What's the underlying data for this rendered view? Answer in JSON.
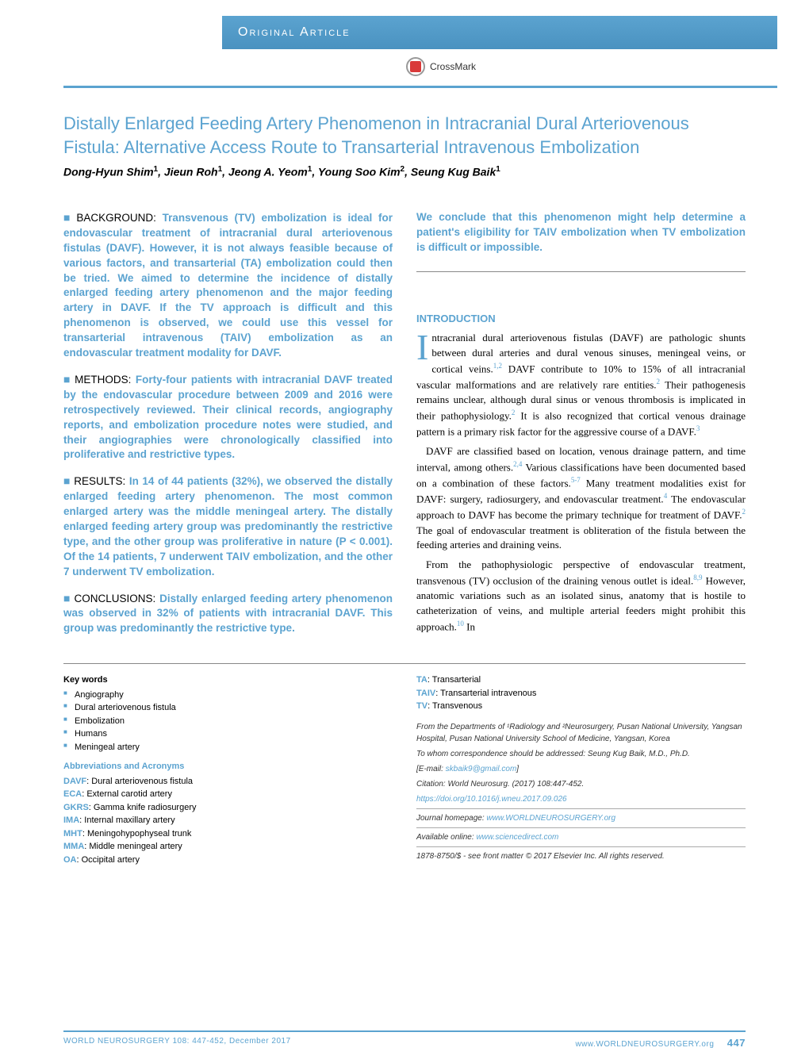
{
  "header": {
    "section_label": "Original Article",
    "crossmark": "CrossMark"
  },
  "title": "Distally Enlarged Feeding Artery Phenomenon in Intracranial Dural Arteriovenous Fistula: Alternative Access Route to Transarterial Intravenous Embolization",
  "authors_html": "Dong-Hyun Shim<sup>1</sup>, Jieun Roh<sup>1</sup>, Jeong A. Yeom<sup>1</sup>, Young Soo Kim<sup>2</sup>, Seung Kug Baik<sup>1</sup>",
  "abstract": {
    "background": {
      "label": "BACKGROUND:",
      "text": "Transvenous (TV) embolization is ideal for endovascular treatment of intracranial dural arteriovenous fistulas (DAVF). However, it is not always feasible because of various factors, and transarterial (TA) embolization could then be tried. We aimed to determine the incidence of distally enlarged feeding artery phenomenon and the major feeding artery in DAVF. If the TV approach is difficult and this phenomenon is observed, we could use this vessel for transarterial intravenous (TAIV) embolization as an endovascular treatment modality for DAVF."
    },
    "methods": {
      "label": "METHODS:",
      "text": "Forty-four patients with intracranial DAVF treated by the endovascular procedure between 2009 and 2016 were retrospectively reviewed. Their clinical records, angiography reports, and embolization procedure notes were studied, and their angiographies were chronologically classified into proliferative and restrictive types."
    },
    "results": {
      "label": "RESULTS:",
      "text": "In 14 of 44 patients (32%), we observed the distally enlarged feeding artery phenomenon. The most common enlarged artery was the middle meningeal artery. The distally enlarged feeding artery group was predominantly the restrictive type, and the other group was proliferative in nature (P < 0.001). Of the 14 patients, 7 underwent TAIV embolization, and the other 7 underwent TV embolization."
    },
    "conclusions": {
      "label": "CONCLUSIONS:",
      "text": "Distally enlarged feeding artery phenomenon was observed in 32% of patients with intracranial DAVF. This group was predominantly the restrictive type.",
      "cont": "We conclude that this phenomenon might help determine a patient's eligibility for TAIV embolization when TV embolization is difficult or impossible."
    }
  },
  "intro": {
    "heading": "INTRODUCTION",
    "p1_lead": "I",
    "p1": "ntracranial dural arteriovenous fistulas (DAVF) are pathologic shunts between dural arteries and dural venous sinuses, meningeal veins, or cortical veins.",
    "p1_refs1": "1,2",
    "p1b": " DAVF contribute to 10% to 15% of all intracranial vascular malformations and are relatively rare entities.",
    "p1_refs2": "2",
    "p1c": " Their pathogenesis remains unclear, although dural sinus or venous thrombosis is implicated in their pathophysiology.",
    "p1_refs3": "2",
    "p1d": " It is also recognized that cortical venous drainage pattern is a primary risk factor for the aggressive course of a DAVF.",
    "p1_refs4": "3",
    "p2": "DAVF are classified based on location, venous drainage pattern, and time interval, among others.",
    "p2_refs1": "2,4",
    "p2b": " Various classifications have been documented based on a combination of these factors.",
    "p2_refs2": "5-7",
    "p2c": " Many treatment modalities exist for DAVF: surgery, radiosurgery, and endovascular treatment.",
    "p2_refs3": "4",
    "p2d": " The endovascular approach to DAVF has become the primary technique for treatment of DAVF.",
    "p2_refs4": "2",
    "p2e": " The goal of endovascular treatment is obliteration of the fistula between the feeding arteries and draining veins.",
    "p3": "From the pathophysiologic perspective of endovascular treatment, transvenous (TV) occlusion of the draining venous outlet is ideal.",
    "p3_refs1": "8,9",
    "p3b": " However, anatomic variations such as an isolated sinus, anatomy that is hostile to catheterization of veins, and multiple arterial feeders might prohibit this approach.",
    "p3_refs2": "10",
    "p3c": " In"
  },
  "keywords": {
    "heading": "Key words",
    "items": [
      "Angiography",
      "Dural arteriovenous fistula",
      "Embolization",
      "Humans",
      "Meningeal artery"
    ]
  },
  "abbreviations": {
    "heading": "Abbreviations and Acronyms",
    "items": [
      {
        "ab": "DAVF",
        "def": "Dural arteriovenous fistula"
      },
      {
        "ab": "ECA",
        "def": "External carotid artery"
      },
      {
        "ab": "GKRS",
        "def": "Gamma knife radiosurgery"
      },
      {
        "ab": "IMA",
        "def": "Internal maxillary artery"
      },
      {
        "ab": "MHT",
        "def": "Meningohypophyseal trunk"
      },
      {
        "ab": "MMA",
        "def": "Middle meningeal artery"
      },
      {
        "ab": "OA",
        "def": "Occipital artery"
      }
    ],
    "items_right": [
      {
        "ab": "TA",
        "def": "Transarterial"
      },
      {
        "ab": "TAIV",
        "def": "Transarterial intravenous"
      },
      {
        "ab": "TV",
        "def": "Transvenous"
      }
    ]
  },
  "affiliation": "From the Departments of ¹Radiology and ²Neurosurgery, Pusan National University, Yangsan Hospital, Pusan National University School of Medicine, Yangsan, Korea",
  "correspondence": "To whom correspondence should be addressed: Seung Kug Baik, M.D., Ph.D.",
  "email_label": "[E-mail: ",
  "email": "skbaik9@gmail.com",
  "email_close": "]",
  "citation": "Citation: World Neurosurg. (2017) 108:447-452.",
  "doi": "https://doi.org/10.1016/j.wneu.2017.09.026",
  "journal_home_label": "Journal homepage: ",
  "journal_home": "www.WORLDNEUROSURGERY.org",
  "available_label": "Available online: ",
  "available": "www.sciencedirect.com",
  "copyright": "1878-8750/$ - see front matter © 2017 Elsevier Inc. All rights reserved.",
  "footer": {
    "left": "WORLD NEUROSURGERY 108: 447-452, December 2017",
    "right_url": "www.WORLDNEUROSURGERY.org",
    "page": "447"
  },
  "colors": {
    "accent": "#5ba3d0",
    "text": "#000000"
  }
}
